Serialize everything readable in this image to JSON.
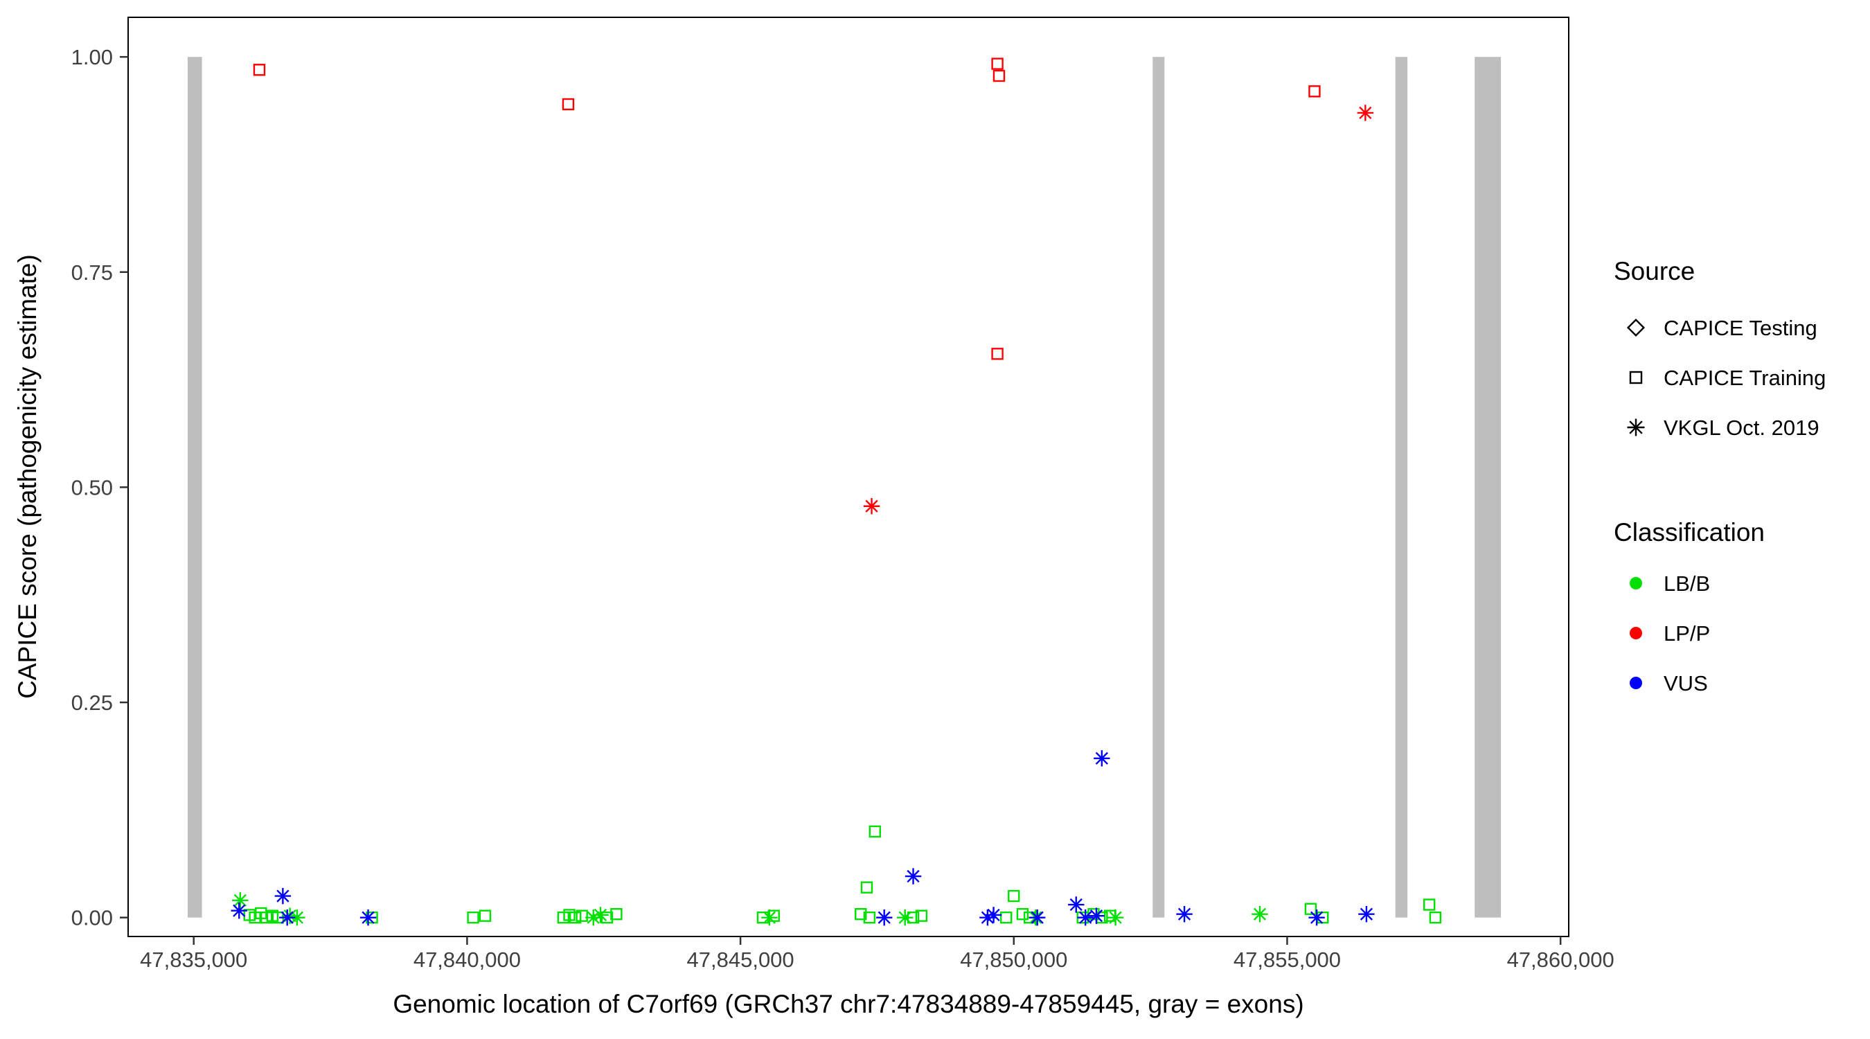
{
  "figure": {
    "background": "#FFFFFF"
  },
  "chart_data": {
    "type": "scatter",
    "title": "",
    "xlabel": "Genomic location of C7orf69 (GRCh37 chr7:47834889-47859445, gray = exons)",
    "ylabel": "CAPICE score (pathogenicity estimate)",
    "xlim": [
      47833800,
      47860150
    ],
    "ylim": [
      -0.022,
      1.046
    ],
    "x_ticks": [
      47835000,
      47840000,
      47845000,
      47850000,
      47855000,
      47860000
    ],
    "x_tick_labels": [
      "47,835,000",
      "47,840,000",
      "47,845,000",
      "47,850,000",
      "47,855,000",
      "47,860,000"
    ],
    "y_ticks": [
      0,
      0.25,
      0.5,
      0.75,
      1.0
    ],
    "y_tick_labels": [
      "0.00",
      "0.25",
      "0.50",
      "0.75",
      "1.00"
    ],
    "grid": "off",
    "legend_position": "right",
    "colors": {
      "lbb": "#00E000",
      "lpp": "#FF0000",
      "vus": "#0000FF",
      "exon": "#BEBEBE",
      "axis": "#333333"
    },
    "exons": [
      {
        "start": 47834889,
        "end": 47835150
      },
      {
        "start": 47852540,
        "end": 47852755
      },
      {
        "start": 47856980,
        "end": 47857200
      },
      {
        "start": 47858430,
        "end": 47858910
      }
    ],
    "series": [
      {
        "name": "CAPICE Training - LP/P",
        "source": "CAPICE Training",
        "classification": "LP/P",
        "shape": "square",
        "color": "lpp",
        "points": [
          [
            47836200,
            0.985
          ],
          [
            47841850,
            0.945
          ],
          [
            47849700,
            0.992
          ],
          [
            47849730,
            0.978
          ],
          [
            47849700,
            0.655
          ],
          [
            47855500,
            0.96
          ]
        ]
      },
      {
        "name": "VKGL Oct. 2019 - LP/P",
        "source": "VKGL Oct. 2019",
        "classification": "LP/P",
        "shape": "asterisk",
        "color": "lpp",
        "points": [
          [
            47847400,
            0.478
          ],
          [
            47856430,
            0.935
          ]
        ]
      },
      {
        "name": "CAPICE Training - LB/B",
        "source": "CAPICE Training",
        "classification": "LB/B",
        "shape": "square",
        "color": "lbb",
        "points": [
          [
            47836020,
            0.003
          ],
          [
            47836120,
            0.0
          ],
          [
            47836230,
            0.005
          ],
          [
            47836330,
            0.0
          ],
          [
            47836440,
            0.002
          ],
          [
            47836540,
            0.0
          ],
          [
            47838260,
            0.0
          ],
          [
            47840110,
            0.0
          ],
          [
            47840330,
            0.002
          ],
          [
            47841760,
            0.0
          ],
          [
            47841870,
            0.003
          ],
          [
            47841980,
            0.0
          ],
          [
            47842100,
            0.002
          ],
          [
            47842560,
            0.0
          ],
          [
            47842730,
            0.004
          ],
          [
            47845410,
            0.0
          ],
          [
            47845610,
            0.002
          ],
          [
            47847200,
            0.004
          ],
          [
            47847310,
            0.035
          ],
          [
            47847460,
            0.1
          ],
          [
            47847360,
            0.0
          ],
          [
            47848160,
            0.0
          ],
          [
            47848310,
            0.002
          ],
          [
            47849860,
            0.0
          ],
          [
            47850000,
            0.025
          ],
          [
            47850160,
            0.004
          ],
          [
            47850290,
            0.0
          ],
          [
            47851260,
            0.0
          ],
          [
            47851460,
            0.004
          ],
          [
            47851610,
            0.0
          ],
          [
            47851760,
            0.002
          ],
          [
            47855430,
            0.01
          ],
          [
            47855650,
            0.0
          ],
          [
            47857600,
            0.015
          ],
          [
            47857710,
            0.0
          ]
        ]
      },
      {
        "name": "VKGL Oct. 2019 - LB/B",
        "source": "VKGL Oct. 2019",
        "classification": "LB/B",
        "shape": "asterisk",
        "color": "lbb",
        "points": [
          [
            47835850,
            0.02
          ],
          [
            47836760,
            0.002
          ],
          [
            47836890,
            0.0
          ],
          [
            47842310,
            0.0
          ],
          [
            47842440,
            0.003
          ],
          [
            47845530,
            0.0
          ],
          [
            47848010,
            0.0
          ],
          [
            47850400,
            0.0
          ],
          [
            47851860,
            0.0
          ],
          [
            47854500,
            0.004
          ]
        ]
      },
      {
        "name": "VKGL Oct. 2019 - VUS",
        "source": "VKGL Oct. 2019",
        "classification": "VUS",
        "shape": "asterisk",
        "color": "vus",
        "points": [
          [
            47835830,
            0.008
          ],
          [
            47836630,
            0.025
          ],
          [
            47836710,
            0.0
          ],
          [
            47838190,
            0.0
          ],
          [
            47847630,
            0.0
          ],
          [
            47848160,
            0.048
          ],
          [
            47849520,
            0.0
          ],
          [
            47849630,
            0.003
          ],
          [
            47850430,
            0.0
          ],
          [
            47851140,
            0.015
          ],
          [
            47851310,
            0.0
          ],
          [
            47851510,
            0.002
          ],
          [
            47851610,
            0.185
          ],
          [
            47853120,
            0.004
          ],
          [
            47855540,
            0.0
          ],
          [
            47856450,
            0.004
          ]
        ]
      }
    ]
  },
  "legend": {
    "source": {
      "title": "Source",
      "items": [
        {
          "shape": "diamond",
          "label": "CAPICE Testing"
        },
        {
          "shape": "square",
          "label": "CAPICE Training"
        },
        {
          "shape": "asterisk",
          "label": "VKGL Oct. 2019"
        }
      ]
    },
    "classification": {
      "title": "Classification",
      "items": [
        {
          "color": "lbb",
          "label": "LB/B"
        },
        {
          "color": "lpp",
          "label": "LP/P"
        },
        {
          "color": "vus",
          "label": "VUS"
        }
      ]
    }
  }
}
